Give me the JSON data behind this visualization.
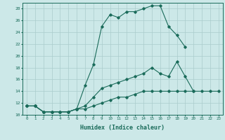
{
  "title": "",
  "xlabel": "Humidex (Indice chaleur)",
  "ylabel": "",
  "bg_color": "#cce8e8",
  "line_color": "#1a6b5a",
  "grid_color": "#aacccc",
  "xlim": [
    -0.5,
    23.5
  ],
  "ylim": [
    10,
    29
  ],
  "xticks": [
    0,
    1,
    2,
    3,
    4,
    5,
    6,
    7,
    8,
    9,
    10,
    11,
    12,
    13,
    14,
    15,
    16,
    17,
    18,
    19,
    20,
    21,
    22,
    23
  ],
  "yticks": [
    10,
    12,
    14,
    16,
    18,
    20,
    22,
    24,
    26,
    28
  ],
  "line1_y": [
    11.5,
    11.5,
    10.5,
    10.5,
    10.5,
    10.5,
    11.0,
    15.0,
    18.5,
    25.0,
    27.0,
    26.5,
    27.5,
    27.5,
    28.0,
    28.5,
    28.5,
    25.0,
    23.5,
    21.5,
    null,
    null,
    null,
    null
  ],
  "line2_y": [
    11.5,
    11.5,
    10.5,
    10.5,
    10.5,
    10.5,
    11.0,
    11.5,
    13.0,
    14.5,
    15.0,
    15.5,
    16.0,
    16.5,
    17.0,
    18.0,
    17.0,
    16.5,
    19.0,
    16.5,
    14.0,
    null,
    null,
    null
  ],
  "line3_y": [
    11.5,
    11.5,
    10.5,
    10.5,
    10.5,
    10.5,
    11.0,
    11.0,
    11.5,
    12.0,
    12.5,
    13.0,
    13.0,
    13.5,
    14.0,
    14.0,
    14.0,
    14.0,
    14.0,
    14.0,
    14.0,
    14.0,
    14.0,
    14.0
  ]
}
